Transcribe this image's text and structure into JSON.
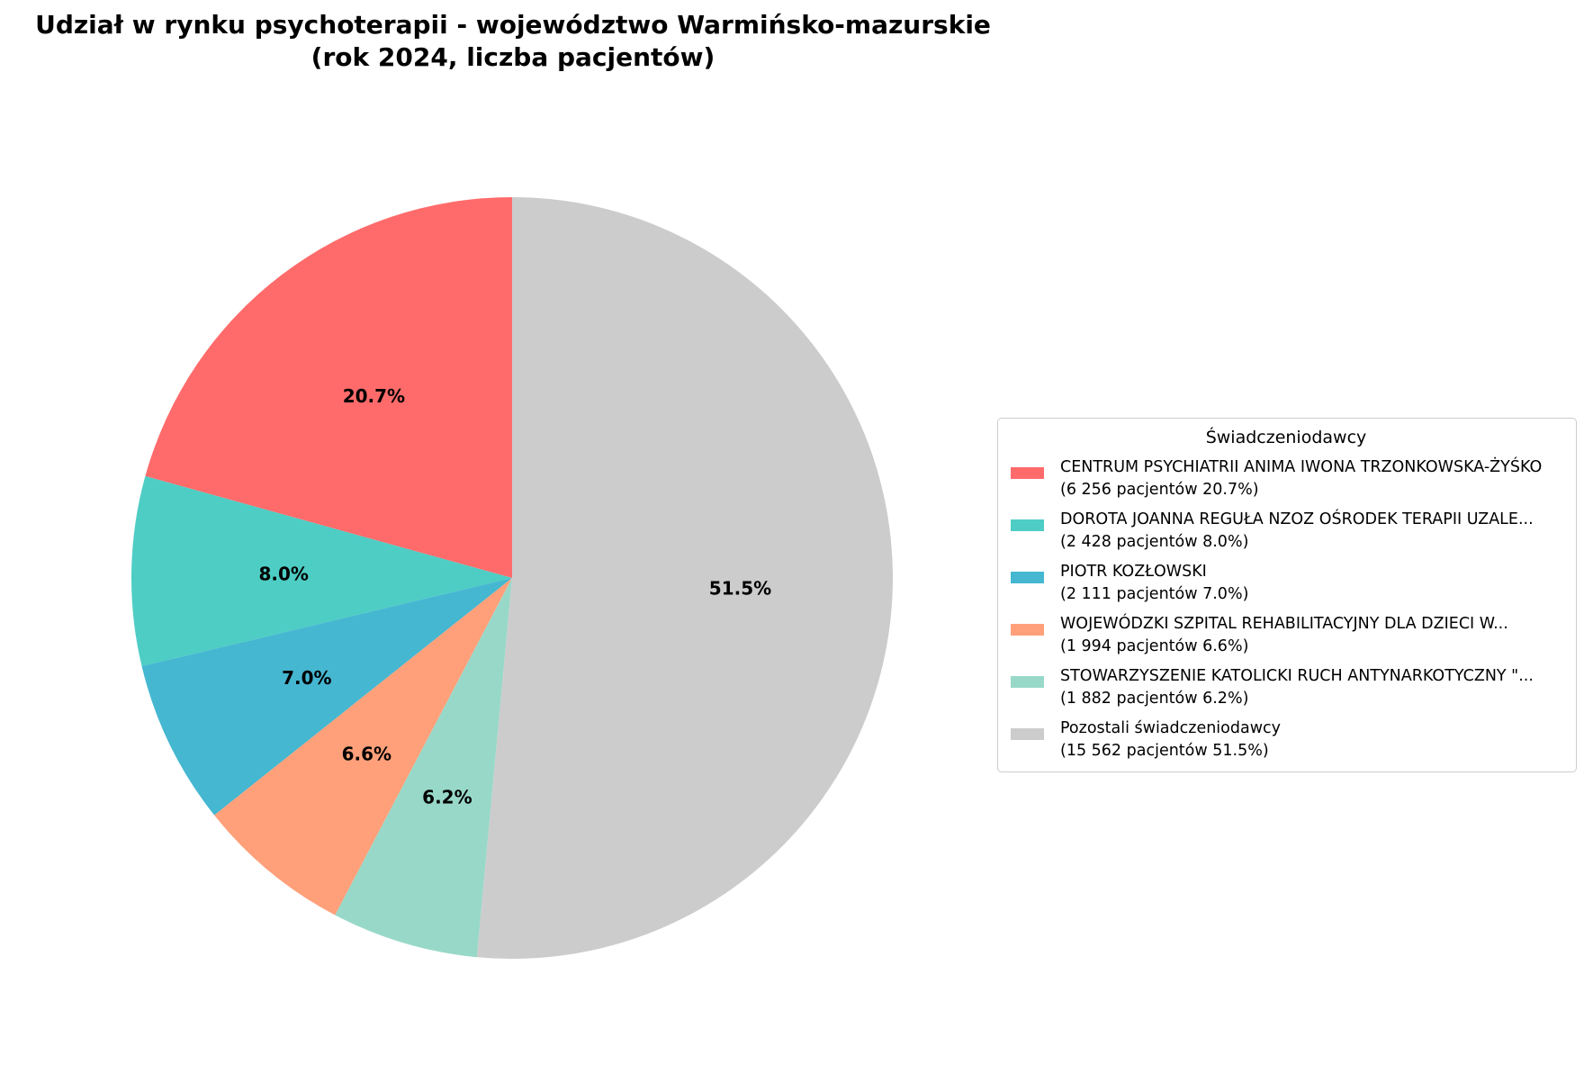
{
  "chart_data": {
    "type": "pie",
    "title_line1": "Udział w rynku psychoterapii - województwo Warmińsko-mazurskie",
    "title_line2": "(rok 2024, liczba pacjentów)",
    "legend": {
      "title": "Świadczeniodawcy",
      "placement": "right"
    },
    "slices": [
      {
        "name": "CENTRUM PSYCHIATRII ANIMA IWONA TRZONKOWSKA-ŻYŚKO",
        "detail": "(6 256 pacjentów  20.7%)",
        "value": 6256,
        "percent": 20.7,
        "label": "20.7%",
        "color": "#ff6b6b"
      },
      {
        "name": "DOROTA JOANNA REGUŁA NZOZ OŚRODEK TERAPII UZALE...",
        "detail": "(2 428 pacjentów  8.0%)",
        "value": 2428,
        "percent": 8.0,
        "label": "8.0%",
        "color": "#4ecdc4"
      },
      {
        "name": "PIOTR KOZŁOWSKI",
        "detail": "(2 111 pacjentów  7.0%)",
        "value": 2111,
        "percent": 7.0,
        "label": "7.0%",
        "color": "#45b7d1"
      },
      {
        "name": "WOJEWÓDZKI SZPITAL REHABILITACYJNY DLA DZIECI W...",
        "detail": "(1 994 pacjentów  6.6%)",
        "value": 1994,
        "percent": 6.6,
        "label": "6.6%",
        "color": "#ffa07a"
      },
      {
        "name": "STOWARZYSZENIE KATOLICKI RUCH ANTYNARKOTYCZNY \"...",
        "detail": "(1 882 pacjentów  6.2%)",
        "value": 1882,
        "percent": 6.2,
        "label": "6.2%",
        "color": "#98d8c8"
      },
      {
        "name": "Pozostali świadczeniodawcy",
        "detail": "(15 562 pacjentów  51.5%)",
        "value": 15562,
        "percent": 51.5,
        "label": "51.5%",
        "color": "#cccccc"
      }
    ]
  }
}
